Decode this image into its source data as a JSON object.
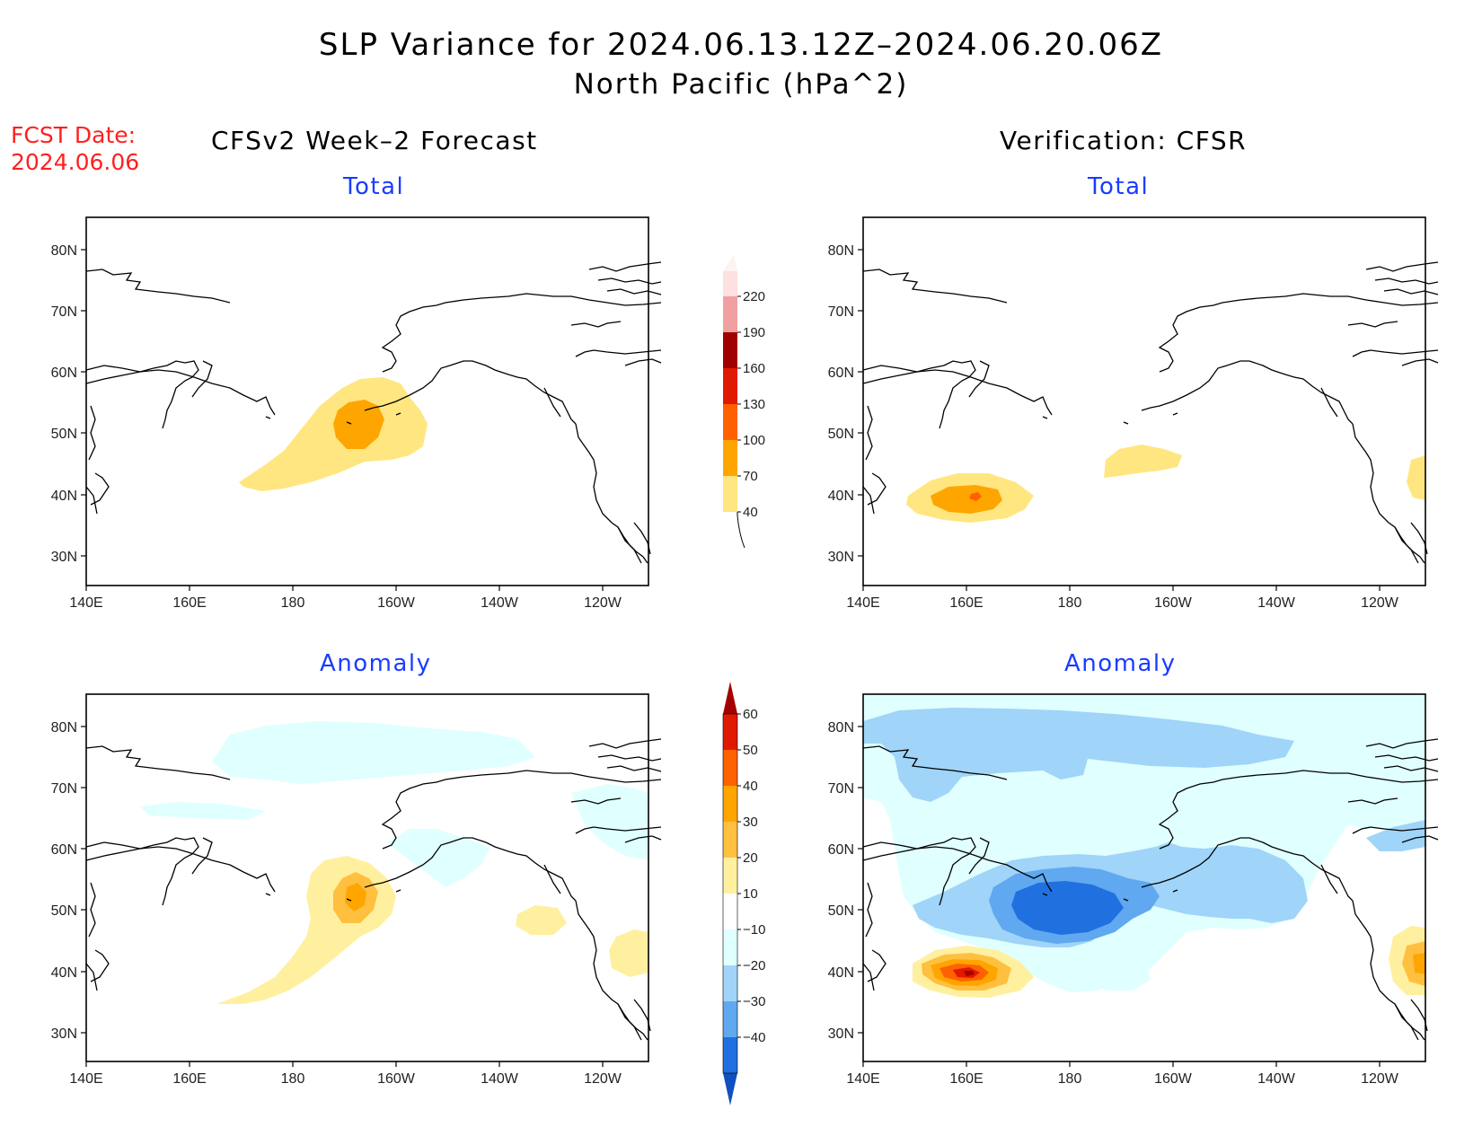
{
  "title": "SLP Variance for 2024.06.13.12Z–2024.06.20.06Z",
  "subtitle": "North Pacific (hPa^2)",
  "fcst_label": "FCST Date:",
  "fcst_date": "2024.06.06",
  "left_column_title": "CFSv2 Week–2 Forecast",
  "right_column_title": "Verification: CFSR",
  "panels": {
    "fcst_total": "Total",
    "verif_total": "Total",
    "fcst_anomaly": "Anomaly",
    "verif_anomaly": "Anomaly"
  },
  "lat_labels": [
    "80N",
    "70N",
    "60N",
    "50N",
    "40N",
    "30N"
  ],
  "lon_labels": [
    "140E",
    "160E",
    "180",
    "160W",
    "140W",
    "120W"
  ],
  "total_colorbar": {
    "levels": [
      "40",
      "70",
      "100",
      "130",
      "160",
      "190",
      "220"
    ],
    "colors": [
      "#ffe680",
      "#ffa500",
      "#ff6000",
      "#e01a00",
      "#a00000",
      "#f0a0a0",
      "#fde0e0"
    ]
  },
  "anomaly_colorbar": {
    "levels": [
      "60",
      "50",
      "40",
      "30",
      "20",
      "10",
      "−10",
      "−20",
      "−30",
      "−40"
    ],
    "colors": [
      "#a50000",
      "#e01a00",
      "#ff6000",
      "#ffa500",
      "#ffc040",
      "#fff0a0",
      "#ffffff",
      "#e0ffff",
      "#a0d4f8",
      "#60a8f0",
      "#2070e0",
      "#1050c0"
    ]
  },
  "chart_data": {
    "type": "heatmap",
    "region": "North Pacific",
    "lat_range": [
      25,
      85
    ],
    "lon_range": [
      "140E",
      "110W"
    ],
    "panels": [
      {
        "name": "Total",
        "source": "CFSv2 Week–2 Forecast",
        "features": [
          {
            "center": [
              "165W",
              "50N"
            ],
            "max_range": "70-100"
          }
        ]
      },
      {
        "name": "Total",
        "source": "Verification: CFSR",
        "features": [
          {
            "center": [
              "160E",
              "40N"
            ],
            "max_range": "100-130"
          }
        ]
      },
      {
        "name": "Anomaly",
        "source": "CFSv2 Week–2 Forecast",
        "features": [
          {
            "center": [
              "165W",
              "51N"
            ],
            "max_range": "20-30"
          }
        ]
      },
      {
        "name": "Anomaly",
        "source": "Verification: CFSR",
        "features": [
          {
            "center": [
              "160E",
              "40N"
            ],
            "max_range": "50-60"
          },
          {
            "center": [
              "180",
              "49N"
            ],
            "min_range": "-40 to -30"
          }
        ]
      }
    ]
  }
}
